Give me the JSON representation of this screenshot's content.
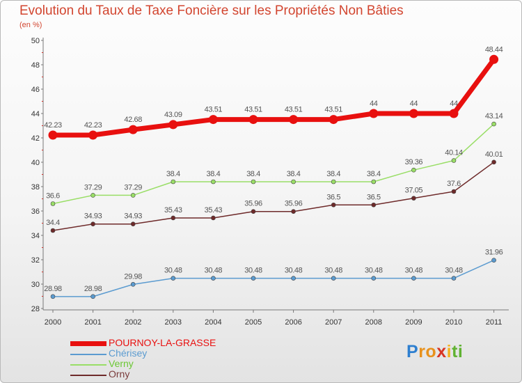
{
  "chart_data": {
    "type": "line",
    "title": "Evolution du Taux de Taxe Foncière sur les Propriétés Non Bâties",
    "ylabel": "(en %)",
    "xlabel": "",
    "categories": [
      "2000",
      "2001",
      "2002",
      "2003",
      "2004",
      "2005",
      "2006",
      "2007",
      "2008",
      "2009",
      "2010",
      "2011"
    ],
    "ylim": [
      28,
      50
    ],
    "yticks": [
      28,
      30,
      32,
      34,
      36,
      38,
      40,
      42,
      44,
      46,
      48,
      50
    ],
    "series": [
      {
        "name": "POURNOY-LA-GRASSE",
        "color": "#e8100f",
        "values": [
          42.23,
          42.23,
          42.68,
          43.09,
          43.51,
          43.51,
          43.51,
          43.51,
          44,
          44,
          44,
          48.44
        ],
        "labels": [
          "42.23",
          "42.23",
          "42.68",
          "43.09",
          "43.51",
          "43.51",
          "43.51",
          "43.51",
          "44",
          "44",
          "44",
          "48.44"
        ]
      },
      {
        "name": "Chérisey",
        "color": "#5b9bd0",
        "values": [
          28.98,
          28.98,
          29.98,
          30.48,
          30.48,
          30.48,
          30.48,
          30.48,
          30.48,
          30.48,
          30.48,
          31.96
        ],
        "labels": [
          "28.98",
          "28.98",
          "29.98",
          "30.48",
          "30.48",
          "30.48",
          "30.48",
          "30.48",
          "30.48",
          "30.48",
          "30.48",
          "31.96"
        ]
      },
      {
        "name": "Verny",
        "color": "#99de66",
        "values": [
          36.6,
          37.29,
          37.29,
          38.4,
          38.4,
          38.4,
          38.4,
          38.4,
          38.4,
          39.36,
          40.14,
          43.14
        ],
        "labels": [
          "36.6",
          "37.29",
          "37.29",
          "38.4",
          "38.4",
          "38.4",
          "38.4",
          "38.4",
          "38.4",
          "39.36",
          "40.14",
          "43.14"
        ]
      },
      {
        "name": "Orny",
        "color": "#6e2a2a",
        "values": [
          34.4,
          34.93,
          34.93,
          35.43,
          35.43,
          35.96,
          35.96,
          36.5,
          36.5,
          37.05,
          37.6,
          40.01
        ],
        "labels": [
          "34.4",
          "34.93",
          "34.93",
          "35.43",
          "35.43",
          "35.96",
          "35.96",
          "36.5",
          "36.5",
          "37.05",
          "37.6",
          "40.01"
        ]
      }
    ]
  },
  "logo": {
    "letters": [
      "P",
      "r",
      "o",
      "x",
      "i",
      "t",
      "i"
    ]
  }
}
